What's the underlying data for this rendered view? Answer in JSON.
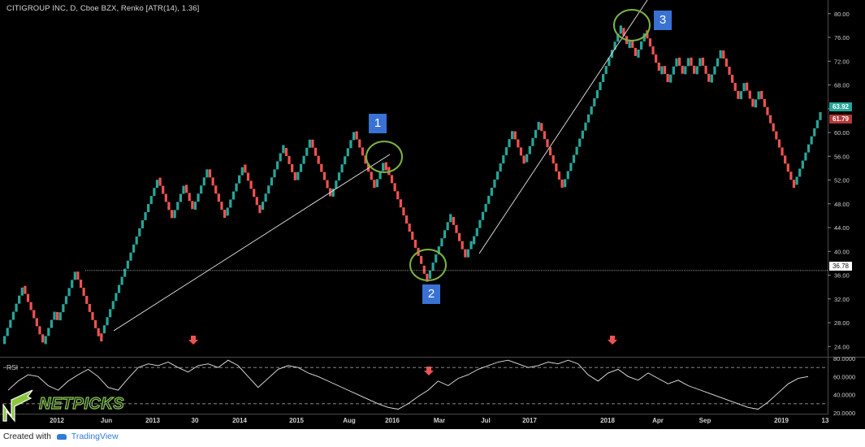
{
  "header": {
    "title": "CITIGROUP INC, D, Cboe BZX, Renko [ATR(14), 1.36]"
  },
  "colors": {
    "up": "#26a69a",
    "down": "#ef5350",
    "background": "#000000",
    "annotation_label": "#3a72d4",
    "annotation_circle": "#7cb342",
    "signal_arrow": "#ef5350",
    "last_up_tag": "#26a69a",
    "last_down_tag": "#b23a3a"
  },
  "chart_data": [
    {
      "type": "renko",
      "series_name": "CITIGROUP INC Renko",
      "brick_size": 1.36,
      "ylim": [
        22.4,
        81.2
      ],
      "y_ticks": [
        "24.00",
        "28.00",
        "32.00",
        "36.00",
        "40.00",
        "44.00",
        "48.00",
        "52.00",
        "56.00",
        "60.00",
        "64.00",
        "68.00",
        "72.00",
        "76.00",
        "80.00"
      ],
      "x_ticks": [
        "2012",
        "Jun",
        "2013",
        "30",
        "2014",
        "2015",
        "Aug",
        "2016",
        "Mar",
        "Jul",
        "2017",
        "2018",
        "Apr",
        "Sep",
        "2019",
        "13"
      ],
      "price_path": [
        24.4,
        34.2,
        24.4,
        29.8,
        28.4,
        36.6,
        26.2,
        26.2,
        52.4,
        45.6,
        51.2,
        47.0,
        53.8,
        46.0,
        54.6,
        47.0,
        57.4,
        52.0,
        58.8,
        49.2,
        60.2,
        50.8,
        55.0,
        54.2,
        37.6,
        35.4,
        45.8,
        39.0,
        41.2,
        60.2,
        55.0,
        61.6,
        50.8,
        77.6,
        74.2,
        75.6,
        72.6,
        77.2,
        69.8,
        71.2,
        68.4,
        72.6,
        69.8,
        72.6,
        69.8,
        72.6,
        68.4,
        73.8,
        65.6,
        68.4,
        64.2,
        67.0,
        51.2,
        63.8
      ],
      "last_bricks": {
        "up": 63.92,
        "down": 61.79
      },
      "horizontal_line": 36.78,
      "annotations": [
        {
          "label": "1",
          "price": 56.0
        },
        {
          "label": "2",
          "price": 37.0
        },
        {
          "label": "3",
          "price": 77.6
        }
      ]
    },
    {
      "type": "line",
      "series_name": "RSI",
      "label": "RSI",
      "ylim": [
        20,
        80
      ],
      "y_ticks": [
        "20.0000",
        "40.0000",
        "60.0000",
        "80.0000"
      ],
      "overbought": 70,
      "oversold": 30,
      "values": [
        45,
        55,
        62,
        60,
        50,
        45,
        55,
        62,
        68,
        60,
        48,
        45,
        58,
        70,
        74,
        72,
        76,
        70,
        65,
        72,
        74,
        70,
        78,
        72,
        60,
        48,
        58,
        68,
        72,
        70,
        64,
        60,
        55,
        50,
        45,
        40,
        35,
        30,
        26,
        24,
        30,
        38,
        45,
        55,
        50,
        58,
        62,
        68,
        72,
        76,
        78,
        74,
        70,
        72,
        76,
        74,
        78,
        74,
        62,
        55,
        64,
        68,
        60,
        56,
        64,
        58,
        52,
        56,
        50,
        46,
        42,
        38,
        34,
        30,
        26,
        24,
        32,
        42,
        52,
        58,
        60
      ]
    }
  ],
  "labels": {
    "rsi": "RSI",
    "price_tag_up": "63.92",
    "price_tag_down": "61.79",
    "level_tag": "36.78",
    "ann1": "1",
    "ann2": "2",
    "ann3": "3"
  },
  "logo": {
    "text": "NETPICKS"
  },
  "footer": {
    "created_with": "Created with",
    "brand": "TradingView"
  }
}
